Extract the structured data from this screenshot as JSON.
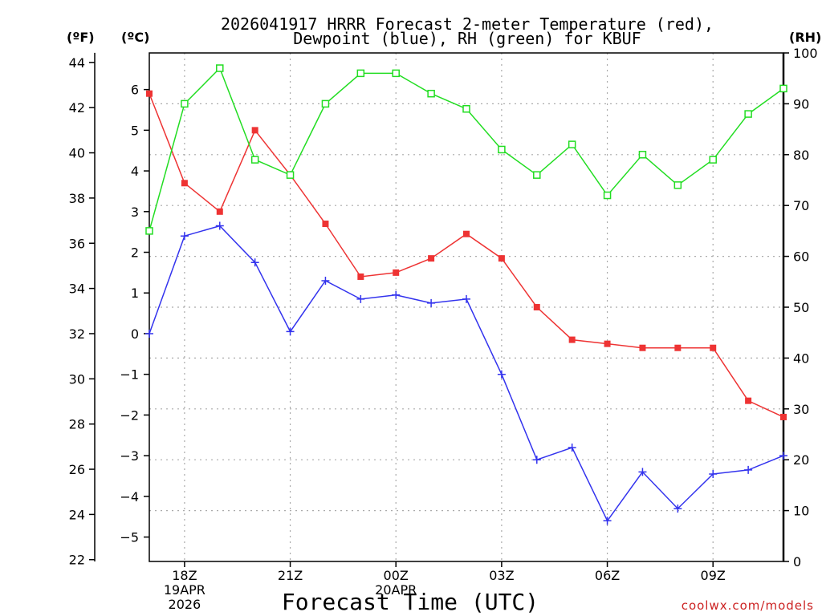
{
  "chart_data": {
    "type": "line",
    "title_line1": "2026041917 HRRR Forecast 2-meter Temperature (red),",
    "title_line2": "Dewpoint (blue), RH (green) for KBUF",
    "xlabel": "Forecast Time (UTC)",
    "watermark": "coolwx.com/models",
    "left_outer_unit": "(ºF)",
    "left_inner_unit": "(ºC)",
    "right_unit": "(RH)",
    "x_hours": [
      17,
      18,
      19,
      20,
      21,
      22,
      23,
      24,
      25,
      26,
      27,
      28,
      29,
      30,
      31,
      32,
      33,
      34,
      35
    ],
    "x_range": [
      17,
      35
    ],
    "x_ticks": [
      {
        "hour": 18,
        "lines": [
          "18Z",
          "19APR",
          "2026"
        ]
      },
      {
        "hour": 21,
        "lines": [
          "21Z"
        ]
      },
      {
        "hour": 24,
        "lines": [
          "00Z",
          "20APR"
        ]
      },
      {
        "hour": 27,
        "lines": [
          "03Z"
        ]
      },
      {
        "hour": 30,
        "lines": [
          "06Z"
        ]
      },
      {
        "hour": 33,
        "lines": [
          "09Z"
        ]
      }
    ],
    "celsius_range": [
      -5.6,
      6.9
    ],
    "celsius_ticks": [
      "6",
      "5",
      "4",
      "3",
      "2",
      "1",
      "0",
      "−1",
      "−2",
      "−3",
      "−4",
      "−5"
    ],
    "celsius_tick_values": [
      6,
      5,
      4,
      3,
      2,
      1,
      0,
      -1,
      -2,
      -3,
      -4,
      -5
    ],
    "fahrenheit_ticks": [
      "44",
      "42",
      "40",
      "38",
      "36",
      "34",
      "32",
      "30",
      "28",
      "26",
      "24",
      "22"
    ],
    "fahrenheit_tick_values": [
      44,
      42,
      40,
      38,
      36,
      34,
      32,
      30,
      28,
      26,
      24,
      22
    ],
    "rh_range": [
      0,
      100
    ],
    "rh_ticks": [
      "100",
      "90",
      "80",
      "70",
      "60",
      "50",
      "40",
      "30",
      "20",
      "10",
      "0"
    ],
    "rh_tick_values": [
      100,
      90,
      80,
      70,
      60,
      50,
      40,
      30,
      20,
      10,
      0
    ],
    "series": [
      {
        "name": "2-meter Temperature",
        "axis": "celsius",
        "color": "#ee3333",
        "marker": "filled-square",
        "values": [
          5.9,
          3.7,
          3.0,
          5.0,
          3.9,
          2.7,
          1.4,
          1.5,
          1.85,
          2.45,
          1.85,
          0.65,
          -0.15,
          -0.25,
          -0.35,
          -0.35,
          -0.35,
          -1.65,
          -2.05
        ]
      },
      {
        "name": "Dewpoint",
        "axis": "celsius",
        "color": "#3333ee",
        "marker": "plus",
        "values": [
          0.0,
          2.4,
          2.65,
          1.75,
          0.05,
          1.3,
          0.85,
          0.95,
          0.75,
          0.85,
          -1.0,
          -3.1,
          -2.8,
          -4.6,
          -3.4,
          -4.3,
          -3.45,
          -3.35,
          -3.0
        ]
      },
      {
        "name": "Relative Humidity",
        "axis": "rh",
        "color": "#22dd22",
        "marker": "open-square",
        "values": [
          65,
          90,
          97,
          79,
          76,
          90,
          96,
          96,
          92,
          89,
          81,
          76,
          82,
          72,
          80,
          74,
          79,
          88,
          93
        ]
      }
    ]
  }
}
